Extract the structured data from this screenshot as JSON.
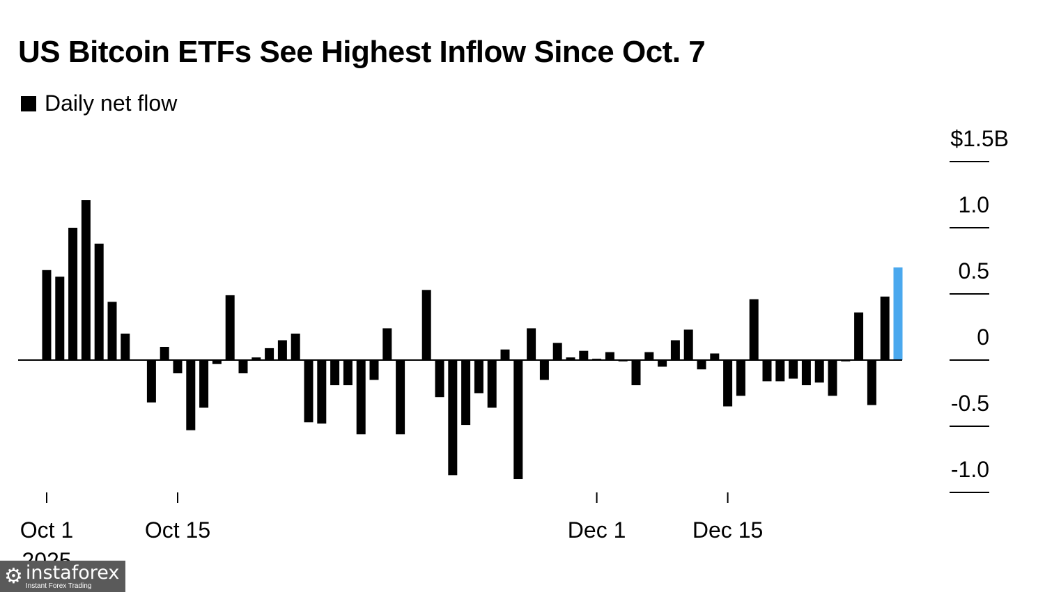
{
  "chart_data": {
    "type": "bar",
    "title": "US Bitcoin ETFs See Highest Inflow Since Oct. 7",
    "legend": [
      "Daily net flow"
    ],
    "legend_position": "top-left",
    "y_unit_label": "$1.5B",
    "ylim": [
      -1.0,
      1.5
    ],
    "y_ticks": [
      1.5,
      1.0,
      0.5,
      0,
      -0.5,
      -1.0
    ],
    "y_tick_labels": [
      "$1.5B",
      "1.0",
      "0.5",
      "0",
      "-0.5",
      "-1.0"
    ],
    "x_tick_labels": [
      {
        "label": "Oct 1",
        "index": 0
      },
      {
        "label": "Oct 15",
        "index": 10
      },
      {
        "label": "Dec 1",
        "index": 42
      },
      {
        "label": "Dec 15",
        "index": 52
      }
    ],
    "year_label": "2025",
    "colors": {
      "bar": "#000000",
      "highlight": "#4aa8ee"
    },
    "highlight_index": 65,
    "values": [
      0.68,
      0.63,
      1.0,
      1.21,
      0.88,
      0.44,
      0.2,
      0.0,
      -0.32,
      0.1,
      -0.1,
      -0.53,
      -0.36,
      -0.03,
      0.49,
      -0.1,
      0.02,
      0.09,
      0.15,
      0.2,
      -0.47,
      -0.48,
      -0.19,
      -0.19,
      -0.56,
      -0.15,
      0.24,
      -0.56,
      0.0,
      0.53,
      -0.28,
      -0.87,
      -0.49,
      -0.25,
      -0.36,
      0.08,
      -0.9,
      0.24,
      -0.15,
      0.13,
      0.02,
      0.07,
      0.01,
      0.06,
      -0.01,
      -0.19,
      0.06,
      -0.05,
      0.15,
      0.23,
      -0.07,
      0.05,
      -0.35,
      -0.27,
      0.46,
      -0.16,
      -0.16,
      -0.14,
      -0.19,
      -0.17,
      -0.27,
      -0.01,
      0.36,
      -0.34,
      0.48,
      0.7
    ]
  },
  "watermark": {
    "icon": "gear-icon",
    "brand": "instaforex",
    "tagline": "Instant Forex Trading"
  }
}
